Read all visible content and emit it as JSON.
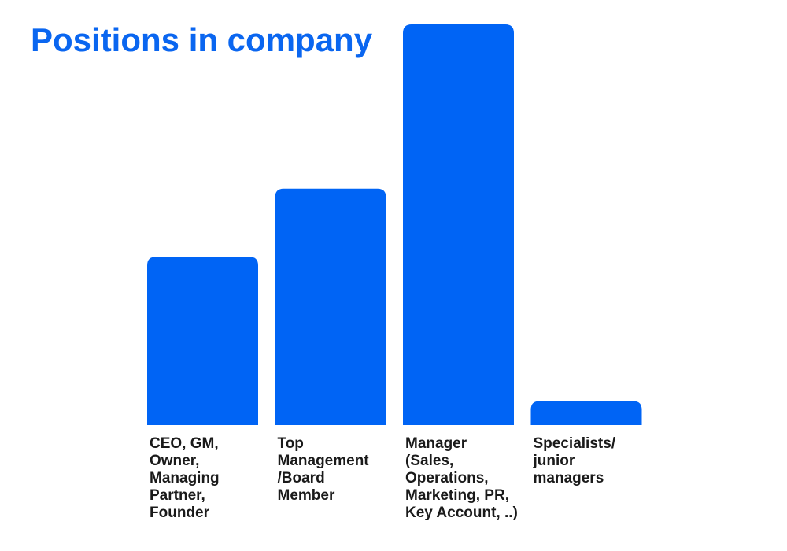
{
  "chart_data": {
    "type": "bar",
    "title": "Positions in company",
    "xlabel": "",
    "ylabel": "",
    "categories": [
      "CEO, GM, Owner, Managing Partner, Founder",
      "Top Management /Board Member",
      "Manager (Sales, Operations, Marketing, PR, Key Account, ..)",
      "Specialists/ junior managers"
    ],
    "category_label_lines": [
      [
        "CEO, GM,",
        "Owner,",
        "Managing",
        "Partner,",
        "Founder"
      ],
      [
        "Top",
        "Management",
        "/Board",
        "Member"
      ],
      [
        "Manager",
        "(Sales,",
        "Operations,",
        "Marketing, PR,",
        "Key Account, ..)"
      ],
      [
        "Specialists/",
        "junior",
        "managers"
      ]
    ],
    "values": [
      42,
      59,
      100,
      6
    ],
    "ylim": [
      0,
      100
    ],
    "grid": false,
    "legend": "none",
    "colors": {
      "bar": "#0064f5",
      "title": "#0a66f0",
      "label": "#1a1a1a"
    }
  }
}
